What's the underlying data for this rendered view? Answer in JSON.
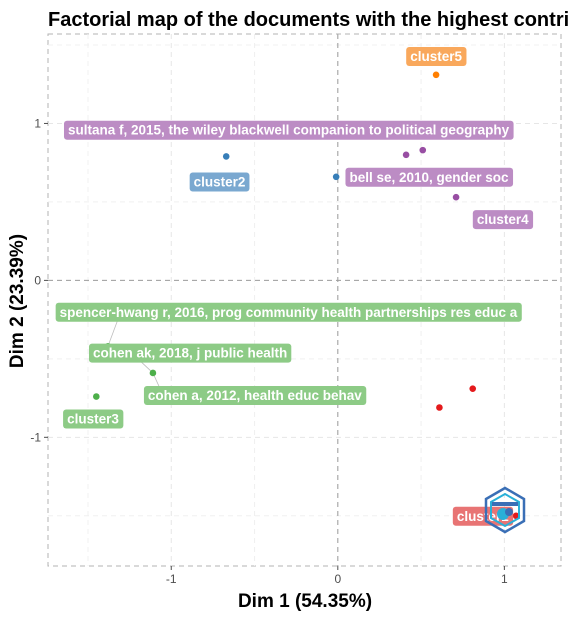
{
  "chart_data": {
    "type": "scatter",
    "title": "Factorial map of the documents with the highest contributes",
    "xlabel": "Dim 1 (54.35%)",
    "ylabel": "Dim 2 (23.39%)",
    "xlim": [
      -1.74,
      1.34
    ],
    "ylim": [
      -1.82,
      1.57
    ],
    "xticks": [
      -1,
      0,
      1
    ],
    "yticks": [
      -1,
      0,
      1
    ],
    "xtick_labels": [
      "-1",
      "0",
      "1"
    ],
    "ytick_labels": [
      "-1",
      "0",
      "1"
    ],
    "grid": true,
    "legend": "none",
    "reference_lines": {
      "x": 0,
      "y": 0,
      "style": "dashed"
    },
    "clusters": [
      {
        "name": "cluster1",
        "color": "#e41a1c",
        "label_bg": "#e87474"
      },
      {
        "name": "cluster2",
        "color": "#377eb8",
        "label_bg": "#7aa8d0"
      },
      {
        "name": "cluster3",
        "color": "#4daf4a",
        "label_bg": "#8dcb86"
      },
      {
        "name": "cluster4",
        "color": "#984ea3",
        "label_bg": "#bc8cc4"
      },
      {
        "name": "cluster5",
        "color": "#ff7f00",
        "label_bg": "#f9a85c"
      }
    ],
    "points": [
      {
        "cluster": 1,
        "x": 0.61,
        "y": -0.81
      },
      {
        "cluster": 1,
        "x": 0.81,
        "y": -0.69
      },
      {
        "cluster": 1,
        "x": 1.07,
        "y": -1.5
      },
      {
        "cluster": 2,
        "x": -0.67,
        "y": 0.79
      },
      {
        "cluster": 2,
        "x": -0.01,
        "y": 0.66
      },
      {
        "cluster": 3,
        "x": -1.45,
        "y": -0.74
      },
      {
        "cluster": 3,
        "x": -1.38,
        "y": -0.42
      },
      {
        "cluster": 3,
        "x": -1.11,
        "y": -0.59
      },
      {
        "cluster": 4,
        "x": 0.41,
        "y": 0.8
      },
      {
        "cluster": 4,
        "x": 0.51,
        "y": 0.83
      },
      {
        "cluster": 4,
        "x": 0.71,
        "y": 0.53
      },
      {
        "cluster": 5,
        "x": 0.59,
        "y": 1.31
      }
    ],
    "labels": [
      {
        "text": "cluster5",
        "cluster": 5,
        "x": 0.59,
        "y": 1.43,
        "anchor": "middle"
      },
      {
        "text": "sultana f, 2015, the wiley blackwell companion to political geography",
        "cluster": 4,
        "x": -1.62,
        "y": 0.96,
        "anchor": "start"
      },
      {
        "text": "cluster2",
        "cluster": 2,
        "x": -0.71,
        "y": 0.63,
        "anchor": "middle"
      },
      {
        "text": "bell se, 2010, gender soc",
        "cluster": 4,
        "x": 0.07,
        "y": 0.66,
        "anchor": "start"
      },
      {
        "text": "cluster4",
        "cluster": 4,
        "x": 0.99,
        "y": 0.39,
        "anchor": "middle"
      },
      {
        "text": "spencer-hwang r, 2016, prog community health partnerships res educ a",
        "cluster": 3,
        "x": -1.67,
        "y": -0.2,
        "anchor": "start"
      },
      {
        "text": "cohen ak, 2018, j public health",
        "cluster": 3,
        "x": -1.47,
        "y": -0.46,
        "anchor": "start"
      },
      {
        "text": "cohen a, 2012, health educ behav",
        "cluster": 3,
        "x": -1.14,
        "y": -0.73,
        "anchor": "start"
      },
      {
        "text": "cluster3",
        "cluster": 3,
        "x": -1.47,
        "y": -0.88,
        "anchor": "middle"
      },
      {
        "text": "cluster1",
        "cluster": 1,
        "x": 0.87,
        "y": -1.5,
        "anchor": "middle"
      }
    ]
  }
}
